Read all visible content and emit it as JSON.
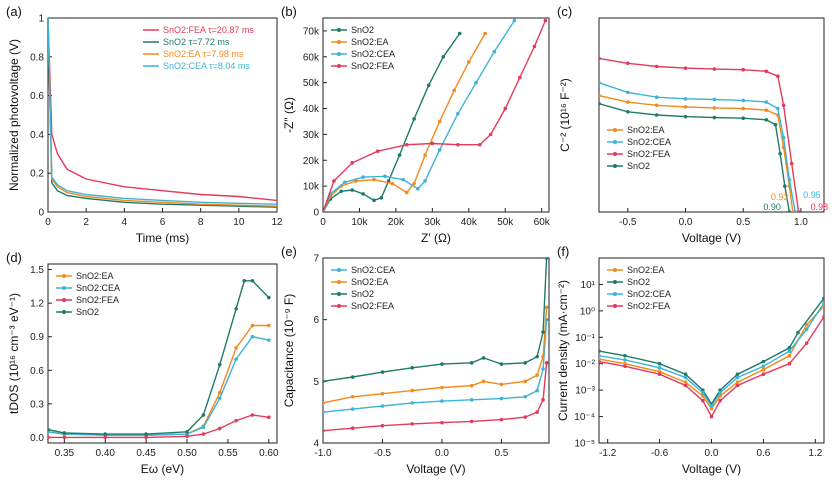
{
  "colors": {
    "SnO2": "#1f7a6a",
    "SnO2:EA": "#f28a1c",
    "SnO2:CEA": "#3cb4d6",
    "SnO2:FEA": "#e4395c"
  },
  "chart_data": [
    {
      "panel": "(a)",
      "type": "line",
      "xlabel": "Time (ms)",
      "ylabel": "Normalized photovoltage (V)",
      "xlim": [
        0,
        12
      ],
      "ylim": [
        0,
        1.0
      ],
      "xticks": [
        0,
        2,
        4,
        6,
        8,
        10,
        12
      ],
      "yticks": [
        0.0,
        0.2,
        0.4,
        0.6,
        0.8,
        1.0
      ],
      "legend_position": "top-right",
      "series": [
        {
          "name": "SnO2:FEA τ=20.87 ms",
          "key": "SnO2:FEA",
          "tau": 20.87,
          "x": [
            0,
            0.2,
            0.5,
            1,
            2,
            4,
            6,
            8,
            10,
            12
          ],
          "y": [
            1.0,
            0.4,
            0.3,
            0.22,
            0.17,
            0.13,
            0.11,
            0.09,
            0.08,
            0.06
          ]
        },
        {
          "name": "SnO2 τ=7.72 ms",
          "key": "SnO2",
          "tau": 7.72,
          "x": [
            0,
            0.2,
            0.5,
            1,
            2,
            4,
            6,
            8,
            10,
            12
          ],
          "y": [
            1.0,
            0.15,
            0.11,
            0.085,
            0.07,
            0.05,
            0.04,
            0.035,
            0.03,
            0.025
          ]
        },
        {
          "name": "SnO2:EA τ=7.98 ms",
          "key": "SnO2:EA",
          "tau": 7.98,
          "x": [
            0,
            0.2,
            0.5,
            1,
            2,
            4,
            6,
            8,
            10,
            12
          ],
          "y": [
            1.0,
            0.17,
            0.13,
            0.1,
            0.08,
            0.06,
            0.05,
            0.04,
            0.035,
            0.03
          ]
        },
        {
          "name": "SnO2:CEA τ=8.04 ms",
          "key": "SnO2:CEA",
          "tau": 8.04,
          "x": [
            0,
            0.2,
            0.5,
            1,
            2,
            4,
            6,
            8,
            10,
            12
          ],
          "y": [
            1.0,
            0.18,
            0.14,
            0.11,
            0.09,
            0.07,
            0.06,
            0.05,
            0.045,
            0.04
          ]
        }
      ]
    },
    {
      "panel": "(b)",
      "type": "scatter-line",
      "xlabel": "Z′ (Ω)",
      "ylabel": "-Z″ (Ω)",
      "xlim": [
        0,
        62000
      ],
      "ylim": [
        0,
        75000
      ],
      "xticks": [
        0,
        10000,
        20000,
        30000,
        40000,
        50000,
        60000
      ],
      "xticklabels": [
        "0",
        "10k",
        "20k",
        "30k",
        "40k",
        "50k",
        "60k"
      ],
      "yticks": [
        0,
        10000,
        20000,
        30000,
        40000,
        50000,
        60000,
        70000
      ],
      "yticklabels": [
        "0",
        "10k",
        "20k",
        "30k",
        "40k",
        "50k",
        "60k",
        "70k"
      ],
      "legend_position": "top-left",
      "series": [
        {
          "name": "SnO2",
          "key": "SnO2",
          "x": [
            0,
            2000,
            5000,
            8000,
            11000,
            14000,
            16000,
            18000,
            21000,
            25000,
            29000,
            33000,
            37500
          ],
          "y": [
            0,
            5000,
            8000,
            8500,
            7000,
            4500,
            5500,
            12000,
            22000,
            36000,
            49000,
            60000,
            69000
          ]
        },
        {
          "name": "SnO2:EA",
          "key": "SnO2:EA",
          "x": [
            0,
            2000,
            5000,
            9000,
            14000,
            19000,
            23000,
            25000,
            28000,
            32000,
            36000,
            40000,
            44500
          ],
          "y": [
            0,
            6000,
            10000,
            12000,
            12500,
            11000,
            7500,
            11000,
            22000,
            35000,
            47000,
            58000,
            69000
          ]
        },
        {
          "name": "SnO2:CEA",
          "key": "SnO2:CEA",
          "x": [
            0,
            2000,
            6000,
            11000,
            17000,
            22000,
            26000,
            28000,
            32000,
            37000,
            42000,
            47000,
            52500
          ],
          "y": [
            0,
            7000,
            11500,
            13500,
            13800,
            12500,
            9000,
            12000,
            24000,
            38000,
            50000,
            62000,
            74000
          ]
        },
        {
          "name": "SnO2:FEA",
          "key": "SnO2:FEA",
          "x": [
            0,
            3000,
            8000,
            15000,
            23000,
            30000,
            37000,
            43000,
            46000,
            50000,
            54000,
            58000,
            61000
          ],
          "y": [
            0,
            12000,
            19000,
            23500,
            26000,
            26500,
            26000,
            26000,
            30000,
            40000,
            52000,
            64000,
            74000
          ]
        }
      ]
    },
    {
      "panel": "(c)",
      "type": "scatter-line",
      "xlabel": "Voltage (V)",
      "ylabel": "C⁻² (10¹⁶ F⁻²)",
      "xlim": [
        -0.75,
        1.2
      ],
      "ylim": [
        0,
        6
      ],
      "xticks": [
        -0.5,
        0.0,
        0.5,
        1.0
      ],
      "xticklabels": [
        "-0.5",
        "0.0",
        "0.5",
        "1.0"
      ],
      "yticks": [],
      "legend_position": "center-left",
      "series": [
        {
          "name": "SnO2:EA",
          "key": "SnO2:EA",
          "x": [
            -0.75,
            -0.5,
            -0.25,
            0,
            0.25,
            0.5,
            0.7,
            0.8,
            0.85,
            0.9,
            0.93
          ],
          "y": [
            3.6,
            3.4,
            3.3,
            3.25,
            3.22,
            3.2,
            3.15,
            3.0,
            2.0,
            0.8,
            0
          ]
        },
        {
          "name": "SnO2:CEA",
          "key": "SnO2:CEA",
          "x": [
            -0.75,
            -0.5,
            -0.25,
            0,
            0.25,
            0.5,
            0.7,
            0.8,
            0.85,
            0.9,
            0.95
          ],
          "y": [
            4.0,
            3.7,
            3.55,
            3.5,
            3.48,
            3.45,
            3.4,
            3.2,
            2.3,
            1.0,
            0
          ]
        },
        {
          "name": "SnO2:FEA",
          "key": "SnO2:FEA",
          "x": [
            -0.75,
            -0.5,
            -0.25,
            0,
            0.25,
            0.5,
            0.7,
            0.8,
            0.85,
            0.92,
            0.98
          ],
          "y": [
            4.75,
            4.6,
            4.5,
            4.45,
            4.42,
            4.4,
            4.35,
            4.2,
            3.3,
            1.5,
            0
          ]
        },
        {
          "name": "SnO2",
          "key": "SnO2",
          "x": [
            -0.75,
            -0.5,
            -0.25,
            0,
            0.25,
            0.5,
            0.7,
            0.78,
            0.82,
            0.86,
            0.9
          ],
          "y": [
            3.35,
            3.1,
            3.0,
            2.95,
            2.92,
            2.9,
            2.85,
            2.7,
            1.8,
            0.8,
            0
          ]
        }
      ],
      "annotations": [
        {
          "text": "0.93",
          "key": "SnO2:EA",
          "x": 0.93
        },
        {
          "text": "0.95",
          "key": "SnO2:CEA",
          "x": 0.95
        },
        {
          "text": "0.90",
          "key": "SnO2",
          "x": 0.9
        },
        {
          "text": "0.98",
          "key": "SnO2:FEA",
          "x": 0.98
        }
      ]
    },
    {
      "panel": "(d)",
      "type": "scatter-line",
      "xlabel": "Eω (eV)",
      "ylabel": "tDOS (10¹⁶ cm⁻³ eV⁻¹)",
      "xlim": [
        0.33,
        0.61
      ],
      "ylim": [
        -0.05,
        1.55
      ],
      "xticks": [
        0.35,
        0.4,
        0.45,
        0.5,
        0.55,
        0.6
      ],
      "xticklabels": [
        "0.35",
        "0.40",
        "0.45",
        "0.50",
        "0.55",
        "0.60"
      ],
      "yticks": [
        0.0,
        0.3,
        0.6,
        0.9,
        1.2,
        1.5
      ],
      "yticklabels": [
        "0.0",
        "0.3",
        "0.6",
        "0.9",
        "1.2",
        "1.5"
      ],
      "legend_position": "top-left",
      "series": [
        {
          "name": "SnO2:EA",
          "key": "SnO2:EA",
          "x": [
            0.33,
            0.35,
            0.4,
            0.45,
            0.5,
            0.52,
            0.54,
            0.56,
            0.58,
            0.6
          ],
          "y": [
            0.05,
            0.03,
            0.02,
            0.02,
            0.03,
            0.1,
            0.4,
            0.8,
            1.0,
            1.0
          ]
        },
        {
          "name": "SnO2:CEA",
          "key": "SnO2:CEA",
          "x": [
            0.33,
            0.35,
            0.4,
            0.45,
            0.5,
            0.52,
            0.54,
            0.56,
            0.58,
            0.6
          ],
          "y": [
            0.05,
            0.03,
            0.02,
            0.02,
            0.03,
            0.09,
            0.35,
            0.7,
            0.9,
            0.87
          ]
        },
        {
          "name": "SnO2:FEA",
          "key": "SnO2:FEA",
          "x": [
            0.33,
            0.35,
            0.4,
            0.45,
            0.5,
            0.52,
            0.54,
            0.56,
            0.58,
            0.6
          ],
          "y": [
            0.0,
            0.0,
            0.0,
            0.0,
            0.01,
            0.03,
            0.08,
            0.15,
            0.2,
            0.18
          ]
        },
        {
          "name": "SnO2",
          "key": "SnO2",
          "x": [
            0.33,
            0.35,
            0.4,
            0.45,
            0.5,
            0.52,
            0.54,
            0.56,
            0.57,
            0.58,
            0.6
          ],
          "y": [
            0.07,
            0.04,
            0.03,
            0.03,
            0.05,
            0.2,
            0.65,
            1.15,
            1.4,
            1.4,
            1.25
          ]
        }
      ]
    },
    {
      "panel": "(e)",
      "type": "scatter-line",
      "xlabel": "Voltage (V)",
      "ylabel": "Capacitance (10⁻⁹ F)",
      "xlim": [
        -1.0,
        0.9
      ],
      "ylim": [
        4,
        7
      ],
      "xticks": [
        -1.0,
        -0.5,
        0.0,
        0.5
      ],
      "xticklabels": [
        "-1.0",
        "-0.5",
        "0.0",
        "0.5"
      ],
      "yticks": [
        4,
        5,
        6,
        7
      ],
      "yticklabels": [
        "4",
        "5",
        "6",
        "7"
      ],
      "legend_position": "top-left",
      "series": [
        {
          "name": "SnO2:CEA",
          "key": "SnO2:CEA",
          "x": [
            -1.0,
            -0.75,
            -0.5,
            -0.25,
            0.0,
            0.25,
            0.5,
            0.7,
            0.8,
            0.85,
            0.88
          ],
          "y": [
            4.5,
            4.55,
            4.6,
            4.65,
            4.68,
            4.7,
            4.72,
            4.75,
            4.85,
            5.2,
            6.0
          ]
        },
        {
          "name": "SnO2:EA",
          "key": "SnO2:EA",
          "x": [
            -1.0,
            -0.75,
            -0.5,
            -0.25,
            0.0,
            0.25,
            0.35,
            0.5,
            0.7,
            0.8,
            0.85,
            0.88
          ],
          "y": [
            4.65,
            4.75,
            4.8,
            4.85,
            4.9,
            4.93,
            5.0,
            4.95,
            5.0,
            5.1,
            5.4,
            6.2
          ]
        },
        {
          "name": "SnO2",
          "key": "SnO2",
          "x": [
            -1.0,
            -0.75,
            -0.5,
            -0.25,
            0.0,
            0.25,
            0.35,
            0.5,
            0.7,
            0.8,
            0.85,
            0.88
          ],
          "y": [
            5.0,
            5.07,
            5.15,
            5.22,
            5.28,
            5.3,
            5.38,
            5.28,
            5.3,
            5.4,
            5.8,
            7.0
          ]
        },
        {
          "name": "SnO2:FEA",
          "key": "SnO2:FEA",
          "x": [
            -1.0,
            -0.75,
            -0.5,
            -0.25,
            0.0,
            0.25,
            0.5,
            0.7,
            0.8,
            0.85,
            0.88
          ],
          "y": [
            4.2,
            4.24,
            4.28,
            4.31,
            4.33,
            4.35,
            4.38,
            4.42,
            4.5,
            4.7,
            5.3
          ]
        }
      ]
    },
    {
      "panel": "(f)",
      "type": "scatter-line",
      "yscale": "log",
      "xlabel": "Voltage (V)",
      "ylabel": "Current density (mA·cm⁻²)",
      "xlim": [
        -1.3,
        1.3
      ],
      "ylim": [
        1e-05,
        100
      ],
      "xticks": [
        -1.2,
        -0.6,
        0.0,
        0.6,
        1.2
      ],
      "xticklabels": [
        "-1.2",
        "-0.6",
        "0.0",
        "0.6",
        "1.2"
      ],
      "yticks": [
        1e-05,
        0.0001,
        0.001,
        0.01,
        0.1,
        1,
        10
      ],
      "yticklabels": [
        "10⁻⁵",
        "10⁻⁴",
        "10⁻³",
        "10⁻²",
        "10⁻¹",
        "10⁰",
        "10¹"
      ],
      "legend_position": "top-left",
      "series": [
        {
          "name": "SnO2:EA",
          "key": "SnO2:EA",
          "x": [
            -1.3,
            -1.0,
            -0.6,
            -0.3,
            -0.1,
            0.0,
            0.1,
            0.3,
            0.6,
            0.9,
            1.1,
            1.3
          ],
          "y": [
            0.015,
            0.01,
            0.005,
            0.002,
            0.0006,
            0.0002,
            0.0006,
            0.002,
            0.006,
            0.02,
            0.3,
            1.5
          ]
        },
        {
          "name": "SnO2",
          "key": "SnO2",
          "x": [
            -1.3,
            -1.0,
            -0.6,
            -0.3,
            -0.1,
            0.0,
            0.1,
            0.3,
            0.6,
            0.9,
            1.0,
            1.3
          ],
          "y": [
            0.03,
            0.02,
            0.01,
            0.004,
            0.001,
            0.0003,
            0.001,
            0.004,
            0.012,
            0.04,
            0.15,
            3.0
          ]
        },
        {
          "name": "SnO2:CEA",
          "key": "SnO2:CEA",
          "x": [
            -1.3,
            -1.0,
            -0.6,
            -0.3,
            -0.1,
            0.0,
            0.1,
            0.3,
            0.6,
            0.9,
            1.1,
            1.3
          ],
          "y": [
            0.02,
            0.014,
            0.007,
            0.003,
            0.0008,
            0.00025,
            0.0008,
            0.003,
            0.008,
            0.03,
            0.2,
            2.0
          ]
        },
        {
          "name": "SnO2:FEA",
          "key": "SnO2:FEA",
          "x": [
            -1.3,
            -1.0,
            -0.6,
            -0.3,
            -0.1,
            0.0,
            0.1,
            0.3,
            0.6,
            0.9,
            1.1,
            1.3
          ],
          "y": [
            0.012,
            0.008,
            0.004,
            0.0015,
            0.0004,
            0.0001,
            0.0004,
            0.0015,
            0.004,
            0.01,
            0.06,
            0.6
          ]
        }
      ]
    }
  ]
}
